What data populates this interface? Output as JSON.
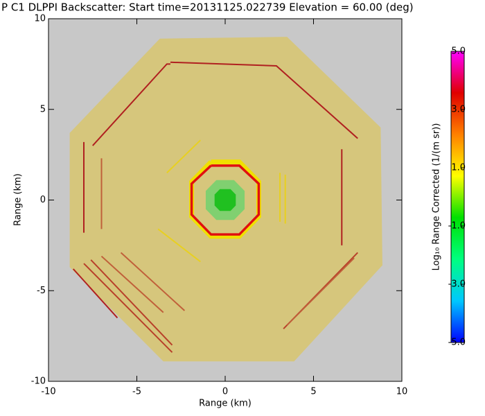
{
  "chart_data": {
    "type": "ppi",
    "title": "P C1 DLPPI Backscatter: Start time=20131125.022739 Elevation = 60.00 (deg)",
    "x_label": "Range (km)",
    "y_label": "Range (km)",
    "xlim": [
      -10,
      10
    ],
    "ylim": [
      -10,
      10
    ],
    "xticks": [
      -10,
      -5,
      0,
      5,
      10
    ],
    "yticks": [
      -10,
      -5,
      0,
      5,
      10
    ],
    "background_color": "#c8c8c8",
    "series": [
      {
        "color": "#d6c67c",
        "fill": true,
        "x": [
          -3.7,
          3.5,
          8.8,
          8.9,
          3.9,
          -3.5,
          -8.8,
          -8.8
        ],
        "y": [
          8.9,
          9.0,
          4.0,
          -3.6,
          -8.9,
          -8.9,
          -3.7,
          3.7
        ]
      },
      {
        "color": "#b02020",
        "fill": false,
        "x": [
          -7.5,
          -3.3,
          -3.1
        ],
        "y": [
          3.0,
          7.5,
          7.5
        ]
      },
      {
        "color": "#b02020",
        "fill": false,
        "x": [
          -3.1,
          2.9,
          7.5
        ],
        "y": [
          7.6,
          7.4,
          3.4
        ]
      },
      {
        "color": "#b02020",
        "fill": false,
        "x": [
          -8.0,
          -8.0
        ],
        "y": [
          3.2,
          -1.8
        ]
      },
      {
        "color": "#b02020",
        "fill": false,
        "x": [
          -8.6,
          -6.1
        ],
        "y": [
          -3.8,
          -6.5
        ]
      },
      {
        "color": "#b8402a",
        "fill": false,
        "x": [
          -8.0,
          -3.0
        ],
        "y": [
          -3.5,
          -8.4
        ]
      },
      {
        "color": "#b8402a",
        "fill": false,
        "x": [
          -7.6,
          -3.0
        ],
        "y": [
          -3.3,
          -8.0
        ]
      },
      {
        "color": "#c0603a",
        "fill": false,
        "x": [
          -7.0,
          -3.5
        ],
        "y": [
          -3.1,
          -6.2
        ]
      },
      {
        "color": "#c0603a",
        "fill": false,
        "x": [
          -7.0,
          -7.0
        ],
        "y": [
          2.3,
          -1.6
        ]
      },
      {
        "color": "#c0603a",
        "fill": false,
        "x": [
          -5.9,
          -2.3
        ],
        "y": [
          -2.9,
          -6.1
        ]
      },
      {
        "color": "#b02020",
        "fill": false,
        "x": [
          6.6,
          6.6
        ],
        "y": [
          2.8,
          -2.5
        ]
      },
      {
        "color": "#b8402a",
        "fill": false,
        "x": [
          7.5,
          3.3
        ],
        "y": [
          -2.9,
          -7.1
        ]
      },
      {
        "color": "#c0603a",
        "fill": false,
        "x": [
          7.3,
          3.5
        ],
        "y": [
          -3.2,
          -6.9
        ]
      },
      {
        "color": "#e8d020",
        "fill": false,
        "x": [
          -3.3,
          -1.4
        ],
        "y": [
          1.5,
          3.3
        ]
      },
      {
        "color": "#e8d020",
        "fill": false,
        "x": [
          -3.8,
          -1.4
        ],
        "y": [
          -1.6,
          -3.4
        ]
      },
      {
        "color": "#e8d020",
        "fill": false,
        "x": [
          3.1,
          3.1
        ],
        "y": [
          1.5,
          -1.2
        ]
      },
      {
        "color": "#e8d020",
        "fill": false,
        "x": [
          3.4,
          3.4
        ],
        "y": [
          1.4,
          -1.3
        ]
      },
      {
        "color": "#f0e000",
        "fill": false,
        "x": [
          -0.8,
          0.8,
          1.9,
          1.9,
          0.8,
          -0.8,
          -1.9,
          -1.9,
          -0.8
        ],
        "y": [
          2.1,
          2.1,
          1.0,
          -0.9,
          -2.0,
          -2.0,
          -0.9,
          1.0,
          2.1
        ]
      },
      {
        "color": "#e01010",
        "fill": false,
        "x": [
          -0.8,
          0.8,
          1.9,
          1.9,
          0.8,
          -0.8,
          -1.9,
          -1.9,
          -0.8
        ],
        "y": [
          1.9,
          1.9,
          0.9,
          -0.8,
          -1.9,
          -1.9,
          -0.8,
          0.9,
          1.9
        ]
      },
      {
        "color": "#80d070",
        "fill": true,
        "x": [
          -0.5,
          0.5,
          1.1,
          1.1,
          0.5,
          -0.5,
          -1.1,
          -1.1
        ],
        "y": [
          1.1,
          1.1,
          0.5,
          -0.5,
          -1.1,
          -1.1,
          -0.5,
          0.5
        ]
      },
      {
        "color": "#20c020",
        "fill": true,
        "x": [
          -0.3,
          0.3,
          0.6,
          0.6,
          0.3,
          -0.3,
          -0.6,
          -0.6
        ],
        "y": [
          0.6,
          0.6,
          0.3,
          -0.3,
          -0.6,
          -0.6,
          -0.3,
          0.3
        ]
      }
    ],
    "colorbar": {
      "label": "Log₁₀ Range Corrected (1/(m sr))",
      "clim": [
        -5,
        5
      ],
      "ticks": [
        {
          "value": 5,
          "label": "5.0"
        },
        {
          "value": 3,
          "label": "3.0"
        },
        {
          "value": 1,
          "label": "1.0"
        },
        {
          "value": -1,
          "label": "-1.0"
        },
        {
          "value": -3,
          "label": "-3.0"
        },
        {
          "value": -5,
          "label": "-5.0"
        }
      ],
      "colors": [
        "#0000ff",
        "#00c8ff",
        "#00ff80",
        "#00e000",
        "#ffff00",
        "#ff8000",
        "#e00000",
        "#ff00ff"
      ]
    }
  }
}
